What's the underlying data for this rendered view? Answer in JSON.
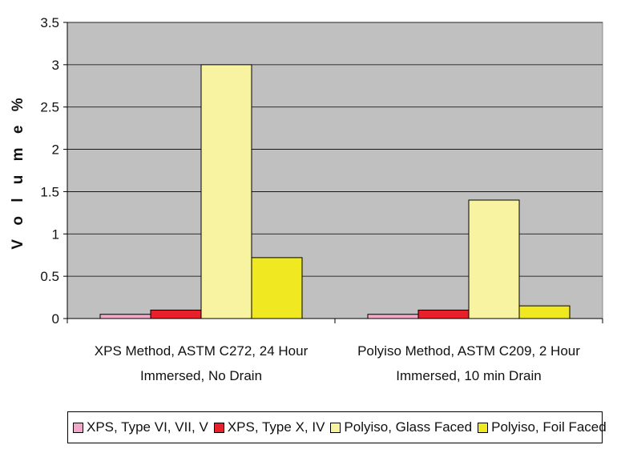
{
  "chart_data": {
    "type": "bar",
    "title": "",
    "xlabel": "",
    "ylabel": "V o l u m e %",
    "ylim": [
      0,
      3.5
    ],
    "yticks": [
      0,
      0.5,
      1,
      1.5,
      2,
      2.5,
      3,
      3.5
    ],
    "ytick_labels": [
      "0",
      "0.5",
      "1",
      "1.5",
      "2",
      "2.5",
      "3",
      "3.5"
    ],
    "grid": true,
    "legend_position": "bottom",
    "categories": [
      [
        "XPS Method, ASTM C272, 24 Hour",
        "Immersed, No Drain"
      ],
      [
        "Polyiso Method, ASTM C209, 2 Hour",
        "Immersed, 10 min Drain"
      ]
    ],
    "series": [
      {
        "name": "XPS, Type VI, VII, V",
        "color": "#f2a8c8",
        "values": [
          0.05,
          0.05
        ]
      },
      {
        "name": "XPS, Type X, IV",
        "color": "#e8202a",
        "values": [
          0.1,
          0.1
        ]
      },
      {
        "name": "Polyiso, Glass Faced",
        "color": "#f8f3a0",
        "values": [
          3.0,
          1.4
        ]
      },
      {
        "name": "Polyiso, Foil Faced",
        "color": "#f0e820",
        "values": [
          0.72,
          0.15
        ]
      }
    ],
    "plot_background": "#c0c0c0",
    "gridline_color": "#000000"
  }
}
